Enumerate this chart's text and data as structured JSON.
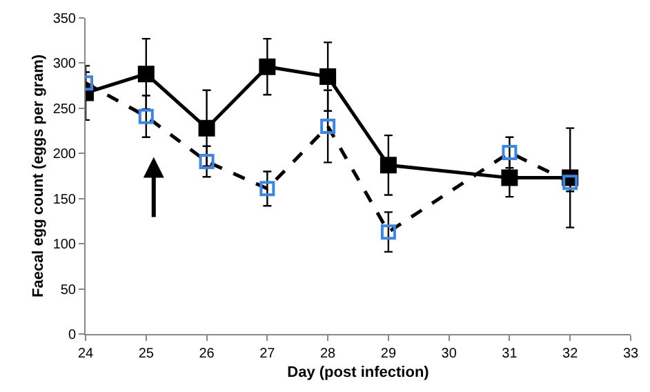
{
  "chart_data": {
    "type": "line",
    "xlabel": "Day (post infection)",
    "ylabel": "Faecal egg count (eggs per gram)",
    "xlim": [
      24,
      33
    ],
    "xticks": [
      24,
      25,
      26,
      27,
      28,
      29,
      30,
      31,
      32,
      33
    ],
    "ylim": [
      0,
      350
    ],
    "yticks": [
      0,
      50,
      100,
      150,
      200,
      250,
      300,
      350
    ],
    "legend": false,
    "marker": "square",
    "series": [
      {
        "color": "#000000",
        "line_style": "solid",
        "x": [
          24,
          25,
          26,
          27,
          28,
          29,
          31,
          32
        ],
        "values": [
          267,
          288,
          228,
          296,
          285,
          187,
          173,
          173
        ],
        "errors": [
          30,
          39,
          42,
          31,
          38,
          33,
          21,
          55
        ]
      },
      {
        "color": "#3a86e8",
        "line_style": "dashed",
        "x": [
          24,
          25,
          26,
          27,
          28,
          29,
          31,
          32
        ],
        "values": [
          278,
          241,
          191,
          161,
          230,
          113,
          201,
          168
        ],
        "errors": [
          12,
          23,
          17,
          19,
          40,
          22,
          17,
          10
        ]
      }
    ]
  }
}
